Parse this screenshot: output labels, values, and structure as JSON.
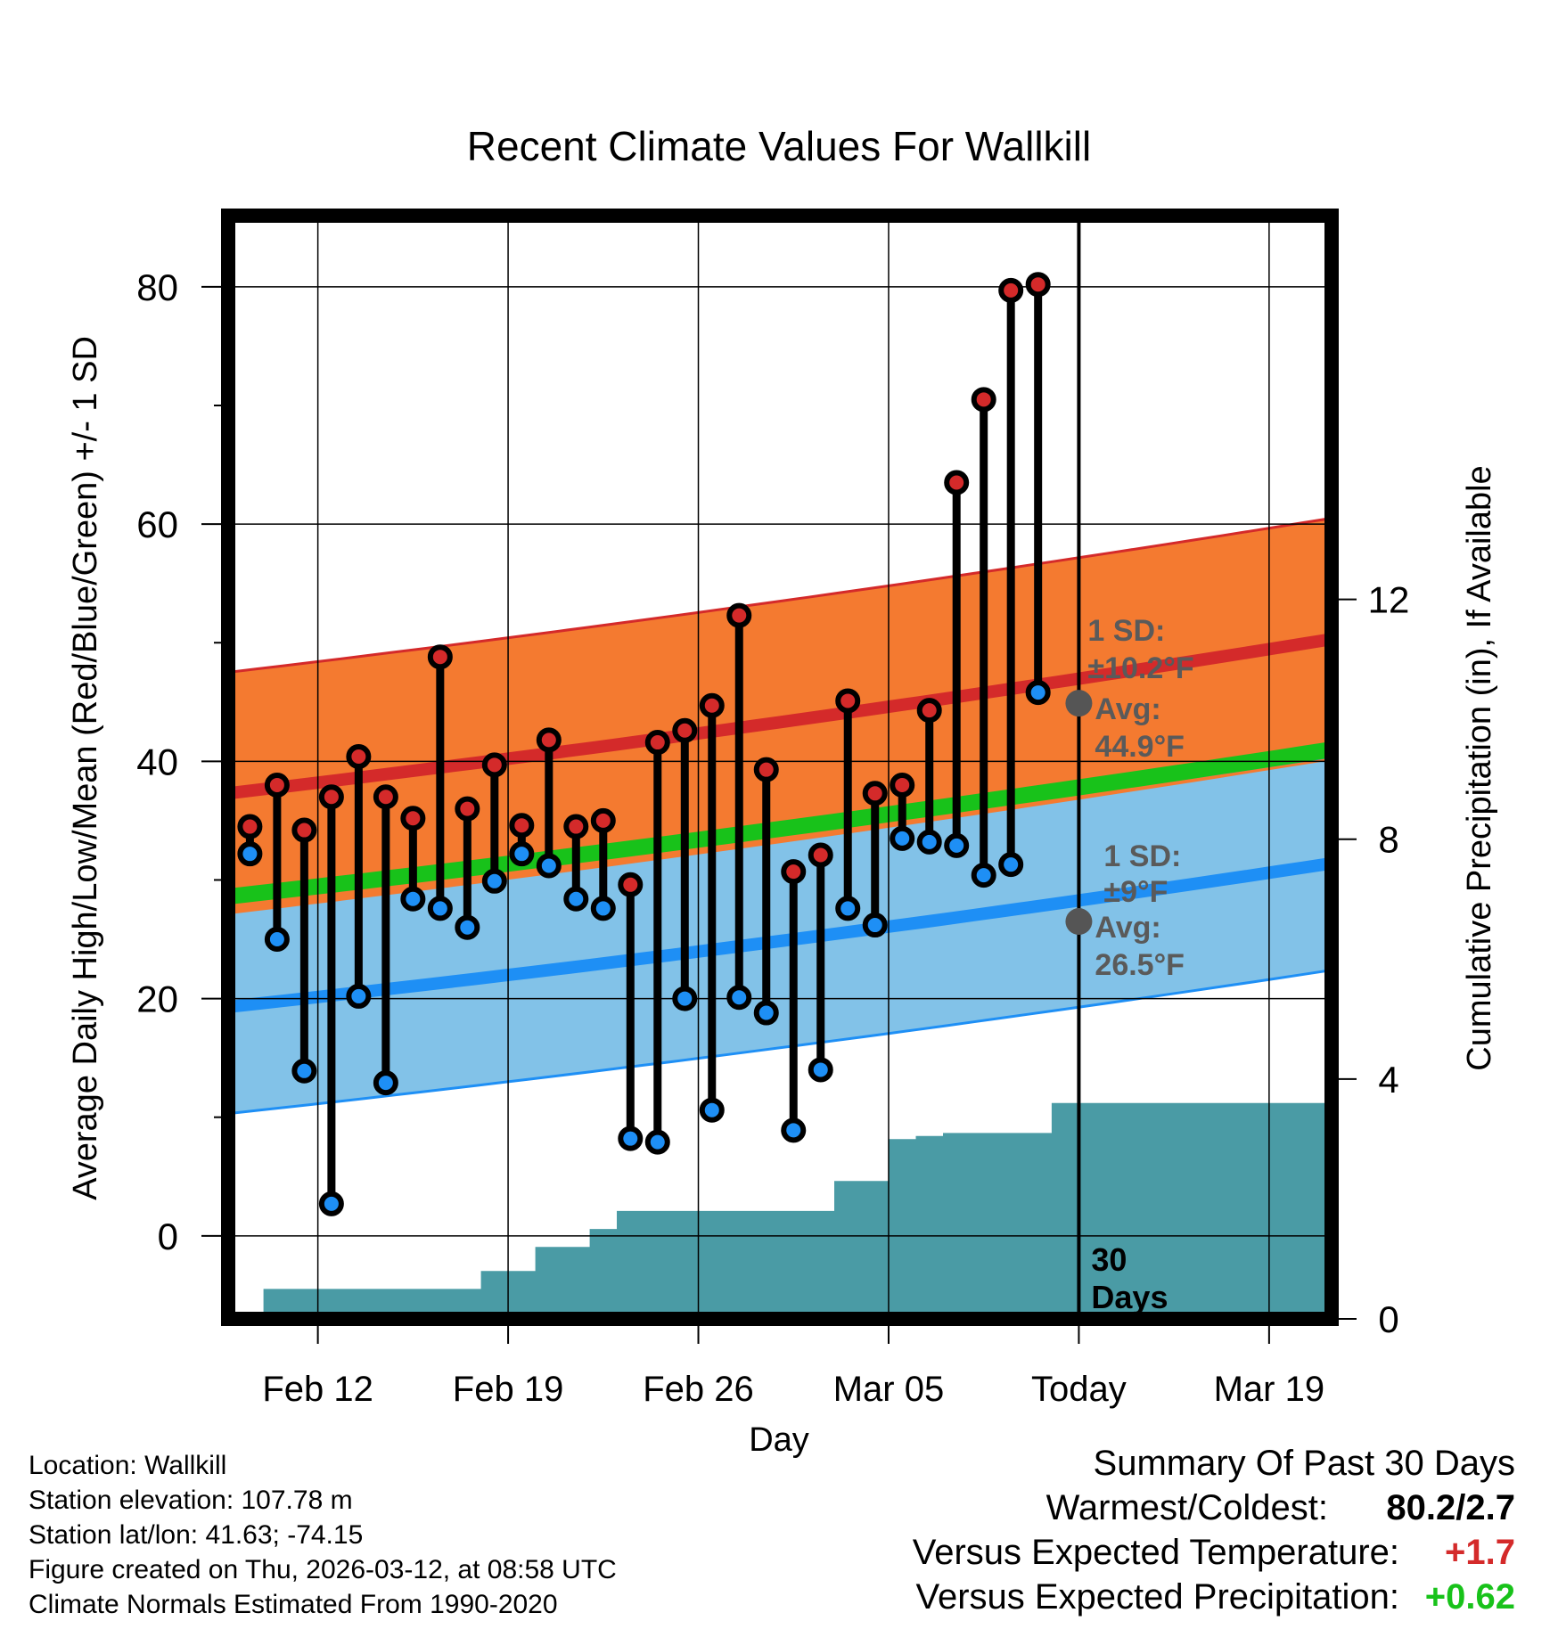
{
  "chart_data": {
    "type": "line",
    "title": "Recent Climate Values For Wallkill",
    "xlabel": "Day",
    "ylabel": "Average Daily High/Low/Mean (Red/Blue/Green) +/- 1 SD",
    "y2label": "Cumulative Precipitation (in), If Available",
    "ylim": [
      -7,
      86
    ],
    "y2lim": [
      0,
      18.4
    ],
    "xlim": [
      -0.8,
      39.8
    ],
    "x_ticks": [
      {
        "x": 2.5,
        "label": "Feb 12"
      },
      {
        "x": 9.5,
        "label": "Feb 19"
      },
      {
        "x": 16.5,
        "label": "Feb 26"
      },
      {
        "x": 23.5,
        "label": "Mar 05"
      },
      {
        "x": 30.5,
        "label": "Today"
      },
      {
        "x": 37.5,
        "label": "Mar 19"
      }
    ],
    "y_ticks": [
      0,
      20,
      40,
      60,
      80
    ],
    "y_minor_ticks": [
      10,
      30,
      50,
      70
    ],
    "y2_ticks": [
      0,
      4,
      8,
      12
    ],
    "today_x": 30.5,
    "days_label": "30 Days",
    "daily_highs": [
      34.5,
      38,
      34.2,
      37,
      40.4,
      37,
      35.2,
      48.8,
      36,
      39.7,
      34.6,
      41.8,
      34.5,
      35,
      29.6,
      41.6,
      42.6,
      44.7,
      52.3,
      39.3,
      30.7,
      32.1,
      45.1,
      37.3,
      38,
      44.3,
      63.5,
      70.5,
      79.7,
      80.2
    ],
    "daily_lows": [
      32.2,
      25,
      13.9,
      2.7,
      20.2,
      12.9,
      28.4,
      27.6,
      26,
      29.9,
      32.2,
      31.2,
      28.4,
      27.6,
      8.2,
      7.9,
      20,
      10.6,
      20.1,
      18.8,
      8.9,
      14,
      27.6,
      26.2,
      33.5,
      33.2,
      32.9,
      30.4,
      31.3,
      45.8
    ],
    "normal_high": {
      "start": 37.3,
      "end": 48.3,
      "sd": 10.2
    },
    "normal_low": {
      "start": 19.3,
      "end": 29.4,
      "sd": 9
    },
    "normal_mean": {
      "start": 28.6,
      "end": 39
    },
    "precip_cumulative": [
      0,
      0.5,
      0.5,
      0.5,
      0.5,
      0.5,
      0.5,
      0.5,
      0.5,
      0.8,
      0.8,
      1.2,
      1.2,
      1.5,
      1.8,
      1.8,
      1.8,
      1.8,
      1.8,
      1.8,
      1.8,
      1.8,
      2.3,
      2.3,
      3.0,
      3.05,
      3.1,
      3.1,
      3.1,
      3.1,
      3.6,
      3.6
    ],
    "annotations": {
      "high_sd_label": "1 SD:",
      "high_sd_value": "±10.2°F",
      "high_avg_label": "Avg:",
      "high_avg_value": "44.9°F",
      "low_sd_label": "1 SD:",
      "low_sd_value": "±9°F",
      "low_avg_label": "Avg:",
      "low_avg_value": "26.5°F",
      "today_high_avg": 44.9,
      "today_low_avg": 26.5
    }
  },
  "colors": {
    "high_band": "#f47a30",
    "high_line": "#d42a2a",
    "low_band": "#82c2e8",
    "low_line": "#1e8ff5",
    "mean_line": "#18c21a",
    "precip": "#4a9ba5",
    "high_dot": "#d42a2a",
    "low_dot": "#1e8ff5",
    "avg_dot": "#555555",
    "annot_text": "#5a5a5a",
    "plus_temp": "#d42a2a",
    "plus_precip": "#18c21a"
  },
  "info": {
    "location": "Location: Wallkill",
    "elevation": "Station elevation: 107.78 m",
    "latlon": "Station lat/lon: 41.63; -74.15",
    "created": "Figure created on Thu, 2026-03-12, at 08:58 UTC",
    "normals": "Climate Normals Estimated From 1990-2020"
  },
  "summary": {
    "title": "Summary Of Past 30 Days",
    "warmest_label": "Warmest/Coldest:",
    "warmest_value": "80.2/2.7",
    "temp_label": "Versus Expected Temperature:",
    "temp_value": "+1.7",
    "precip_label": "Versus Expected Precipitation:",
    "precip_value": "+0.62"
  }
}
